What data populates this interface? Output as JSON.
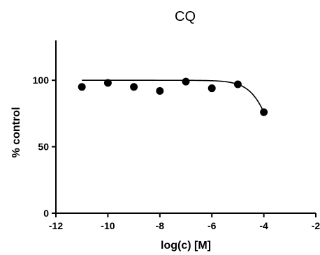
{
  "chart_data": {
    "type": "scatter",
    "title": "CQ",
    "xlabel": "log(c) [M]",
    "ylabel": "% control",
    "xlim": [
      -12,
      -2
    ],
    "ylim": [
      0,
      130
    ],
    "x_ticks": [
      -12,
      -10,
      -8,
      -6,
      -4,
      -2
    ],
    "y_ticks": [
      0,
      50,
      100
    ],
    "grid": false,
    "legend": "none",
    "series": [
      {
        "x": [
          -11,
          -10,
          -9,
          -8,
          -7,
          -6,
          -5,
          -4
        ],
        "y": [
          95,
          98,
          95,
          92,
          99,
          94,
          97,
          76
        ]
      }
    ],
    "fit_curve": {
      "kind": "dose-response",
      "top": 100,
      "bottom": 0,
      "log_ic50": -3.5,
      "hill_slope": 1
    },
    "colors": {
      "marker": "#000000",
      "line": "#000000"
    }
  }
}
